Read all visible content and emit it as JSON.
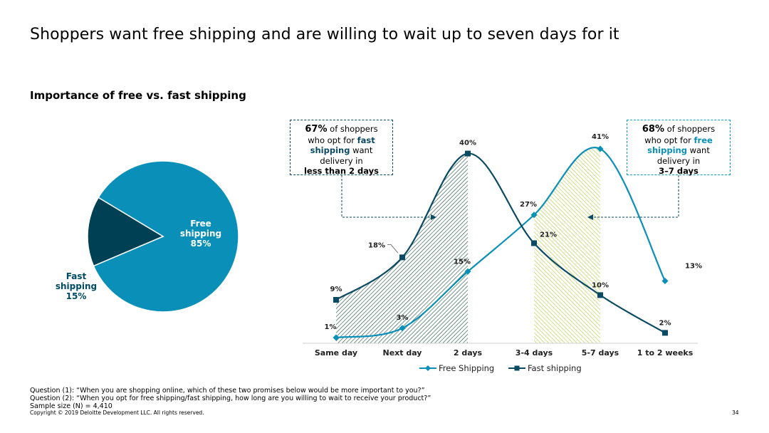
{
  "title": "Shoppers want free shipping and are willing to wait up to seven days for it",
  "subtitle": "Importance of free vs. fast shipping",
  "colors": {
    "free": "#0a8fb8",
    "fast": "#0b4a63",
    "fast_hatch": "#1a4d40",
    "free_hatch": "#b7cc3c"
  },
  "pie": {
    "free_label": [
      "Free",
      "shipping",
      "85%"
    ],
    "fast_label": [
      "Fast",
      "shipping",
      "15%"
    ]
  },
  "callouts": {
    "fast": {
      "pct": "67%",
      "t1": " of shoppers",
      "t2": "who opt for ",
      "hl": "fast",
      "t3": "shipping",
      "t4": " want",
      "t5": "delivery in",
      "t6": "less than 2 days"
    },
    "free": {
      "pct": "68%",
      "t1": " of shoppers",
      "t2": "who opt for ",
      "hl": "free",
      "t3": "shipping",
      "t4": " want",
      "t5": "delivery in",
      "t6": "3–7 days"
    }
  },
  "chart_data": [
    {
      "type": "pie",
      "slices": [
        {
          "name": "Free shipping",
          "value": 85
        },
        {
          "name": "Fast shipping",
          "value": 15
        }
      ]
    },
    {
      "type": "line",
      "categories": [
        "Same day",
        "Next day",
        "2 days",
        "3-4 days",
        "5-7 days",
        "1 to 2 weeks"
      ],
      "series": [
        {
          "name": "Free Shipping",
          "values": [
            1,
            3,
            15,
            27,
            41,
            13
          ],
          "labels": [
            "1%",
            "3%",
            "15%",
            "27%",
            "41%",
            "13%"
          ]
        },
        {
          "name": "Fast shipping",
          "values": [
            9,
            18,
            40,
            21,
            10,
            2
          ],
          "labels": [
            "9%",
            "18%",
            "40%",
            "21%",
            "10%",
            "2%"
          ]
        }
      ],
      "ylim": [
        0,
        42
      ],
      "grid": false,
      "legend": "bottom"
    }
  ],
  "footnotes": [
    "Question (1): “When you are shopping online, which of these two promises below would be more important to you?”",
    "Question (2): “When you opt for free shipping/fast shipping, how long are you willing to wait to receive your product?”",
    "Sample size (N) = 4,410"
  ],
  "copyright": "Copyright © 2019 Deloitte Development LLC. All rights reserved.",
  "page_number": "34"
}
